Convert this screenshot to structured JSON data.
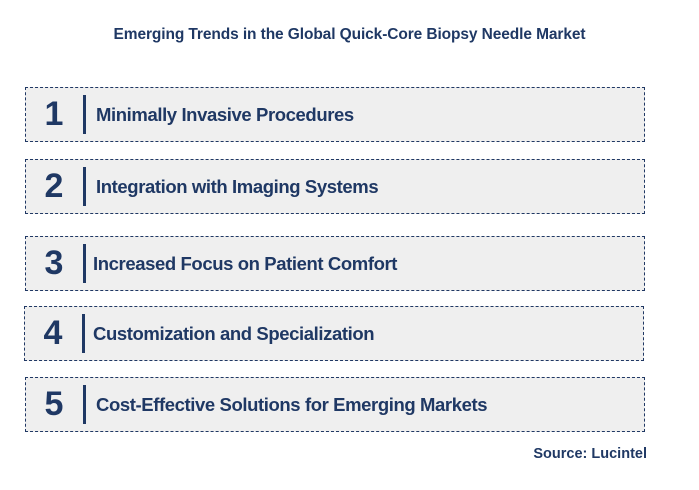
{
  "title": "Emerging Trends in the Global Quick-Core Biopsy Needle Market",
  "trends": [
    {
      "number": "1",
      "label": "Minimally Invasive Procedures"
    },
    {
      "number": "2",
      "label": "Integration with Imaging Systems"
    },
    {
      "number": "3",
      "label": "Increased Focus on Patient Comfort"
    },
    {
      "number": "4",
      "label": "Customization and Specialization"
    },
    {
      "number": "5",
      "label": "Cost-Effective Solutions for Emerging Markets"
    }
  ],
  "source": "Source: Lucintel",
  "colors": {
    "text": "#1f3864",
    "box_background": "#efefef",
    "box_border": "#203864"
  }
}
